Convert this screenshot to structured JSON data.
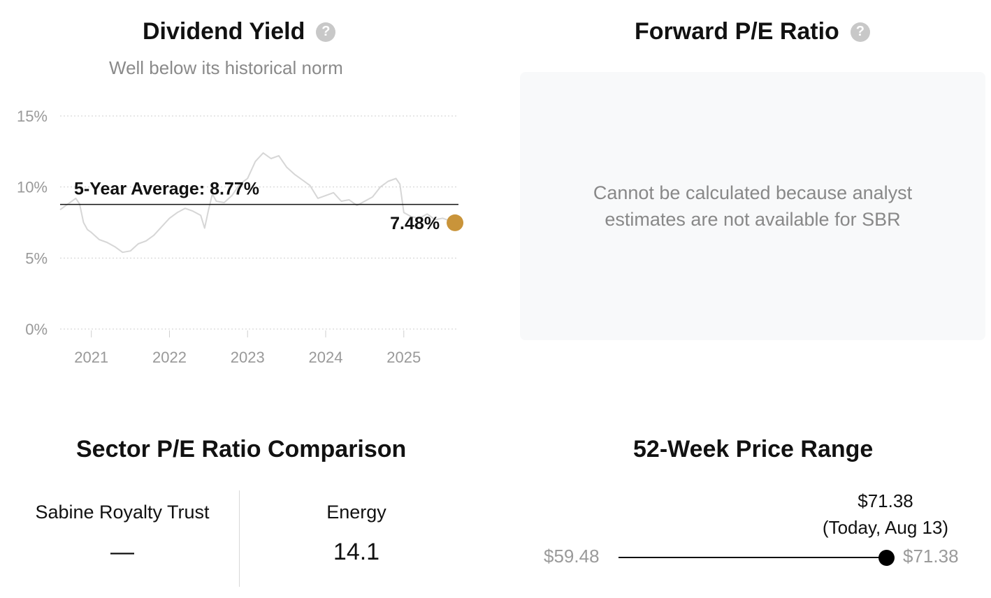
{
  "dividend_yield": {
    "title": "Dividend Yield",
    "help_icon": "question-circle-icon",
    "subtitle": "Well below its historical norm",
    "average_label": "5-Year Average: 8.77%",
    "current_label": "7.48%",
    "current_color": "#c9943a",
    "line_color": "#d6d6d6"
  },
  "chart_data": {
    "type": "line",
    "title": "Dividend Yield",
    "xlabel": "",
    "ylabel": "",
    "y_ticks": [
      "15%",
      "10%",
      "5%",
      "0%"
    ],
    "x_ticks": [
      "2021",
      "2022",
      "2023",
      "2024",
      "2025"
    ],
    "ylim": [
      0,
      15
    ],
    "xlim": [
      2020.6,
      2025.7
    ],
    "grid": true,
    "average": 8.77,
    "current": {
      "x": 2025.62,
      "y": 7.48
    },
    "series": [
      {
        "x": [
          2020.6,
          2020.7,
          2020.8,
          2020.85,
          2020.9,
          2020.95,
          2021.0,
          2021.1,
          2021.2,
          2021.3,
          2021.4,
          2021.5,
          2021.6,
          2021.7,
          2021.8,
          2021.9,
          2022.0,
          2022.1,
          2022.2,
          2022.3,
          2022.4,
          2022.45,
          2022.5,
          2022.55,
          2022.6,
          2022.7,
          2022.8,
          2022.9,
          2023.0,
          2023.1,
          2023.2,
          2023.3,
          2023.4,
          2023.5,
          2023.6,
          2023.7,
          2023.8,
          2023.9,
          2024.0,
          2024.1,
          2024.2,
          2024.3,
          2024.4,
          2024.5,
          2024.6,
          2024.7,
          2024.8,
          2024.9,
          2024.95,
          2025.0,
          2025.1,
          2025.2,
          2025.3,
          2025.4,
          2025.5,
          2025.6
        ],
        "y": [
          8.4,
          8.8,
          9.2,
          8.8,
          7.5,
          7.0,
          6.8,
          6.3,
          6.1,
          5.8,
          5.4,
          5.5,
          6.0,
          6.2,
          6.6,
          7.2,
          7.8,
          8.2,
          8.5,
          8.3,
          8.0,
          7.1,
          8.4,
          9.5,
          9.0,
          8.9,
          9.4,
          10.2,
          10.6,
          11.8,
          12.4,
          12.0,
          12.2,
          11.4,
          10.9,
          10.5,
          10.1,
          9.2,
          9.4,
          9.6,
          9.0,
          9.1,
          8.7,
          9.0,
          9.3,
          10.0,
          10.4,
          10.6,
          10.2,
          8.2,
          7.9,
          7.8,
          8.1,
          7.7,
          7.8,
          7.6
        ]
      }
    ]
  },
  "forward_pe": {
    "title": "Forward P/E Ratio",
    "help_icon": "question-circle-icon",
    "message": "Cannot be calculated because analyst estimates are not available for SBR"
  },
  "sector_pe": {
    "title": "Sector P/E Ratio Comparison",
    "company_label": "Sabine Royalty Trust",
    "company_value": "—",
    "sector_label": "Energy",
    "sector_value": "14.1"
  },
  "price_range": {
    "title": "52-Week Price Range",
    "current_price": "$71.38",
    "current_caption": "(Today, Aug 13)",
    "low": "$59.48",
    "high": "$71.38",
    "position_fraction": 1.0
  }
}
